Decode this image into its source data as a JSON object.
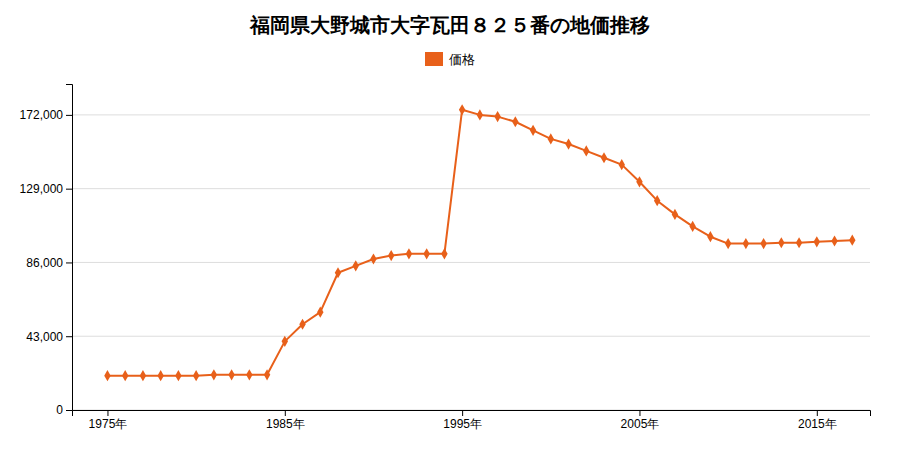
{
  "chart_data": {
    "type": "line",
    "title": "福岡県大野城市大字瓦田８２５番の地価推移",
    "x": [
      1975,
      1976,
      1977,
      1978,
      1979,
      1980,
      1981,
      1982,
      1983,
      1984,
      1985,
      1986,
      1987,
      1988,
      1989,
      1990,
      1991,
      1992,
      1993,
      1994,
      1995,
      1996,
      1997,
      1998,
      1999,
      2000,
      2001,
      2002,
      2003,
      2004,
      2005,
      2006,
      2007,
      2008,
      2009,
      2010,
      2011,
      2012,
      2013,
      2014,
      2015,
      2016,
      2017
    ],
    "series": [
      {
        "name": "価格",
        "color": "#e8601a",
        "marker": "diamond",
        "line_style": "solid",
        "values": [
          20000,
          20000,
          20000,
          20000,
          20000,
          20000,
          20500,
          20500,
          20500,
          20500,
          40000,
          50000,
          57000,
          80000,
          84000,
          88000,
          90000,
          91000,
          91000,
          91000,
          175000,
          172000,
          171000,
          168000,
          163000,
          158000,
          155000,
          151000,
          147000,
          143000,
          133000,
          122000,
          114000,
          107000,
          101000,
          97000,
          97000,
          97000,
          97500,
          97500,
          98000,
          98500,
          99000
        ]
      }
    ],
    "xlim": [
      1973,
      2018
    ],
    "xticks": [
      {
        "value": 1975,
        "label": "1975年"
      },
      {
        "value": 1985,
        "label": "1985年"
      },
      {
        "value": 1995,
        "label": "1995年"
      },
      {
        "value": 2005,
        "label": "2005年"
      },
      {
        "value": 2015,
        "label": "2015年"
      }
    ],
    "ylim": [
      0,
      190000
    ],
    "yticks": [
      0,
      {
        "value": 43000,
        "label": "43,000"
      },
      {
        "value": 86000,
        "label": "86,000"
      },
      {
        "value": 129000,
        "label": "129,000"
      },
      {
        "value": 172000,
        "label": "172,000"
      }
    ],
    "grid": true,
    "legend": "top"
  }
}
